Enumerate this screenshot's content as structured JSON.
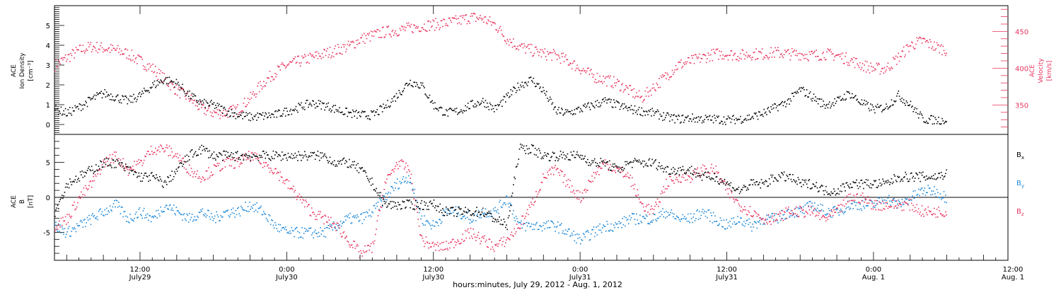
{
  "colors": {
    "axes": "#000000",
    "density": "#000000",
    "velocity": "#e8345e",
    "bx": "#000000",
    "by": "#1e88d8",
    "bz": "#e8345e"
  },
  "chart_data": [
    {
      "type": "scatter",
      "panel": "top",
      "title": "",
      "ylabel": [
        "ACE",
        "Ion Density",
        "[cm⁻³]"
      ],
      "ylim": [
        -0.5,
        6
      ],
      "yticks": [
        "0",
        "1",
        "2",
        "3",
        "4",
        "5"
      ],
      "y2label": [
        "ACE",
        "Velocity",
        "[km/s]"
      ],
      "y2lim": [
        310,
        485
      ],
      "y2ticks": [
        "350",
        "400",
        "450"
      ],
      "x_unit": "hours since July 29, 2012 00:00",
      "xlim": [
        5,
        83
      ],
      "series": [
        {
          "axis": "left",
          "x": [
            5,
            6,
            7,
            8,
            9,
            10,
            11,
            12,
            13,
            14,
            15,
            16,
            17,
            18,
            19,
            20,
            21,
            22,
            23,
            24,
            25,
            26,
            27,
            28,
            29,
            30,
            31,
            32,
            33,
            34,
            35,
            36,
            37,
            38,
            39,
            40,
            41,
            42,
            43,
            44,
            45,
            46,
            47,
            48,
            49,
            50,
            51,
            52,
            53,
            54,
            55,
            56,
            57,
            58,
            59,
            60,
            61,
            62,
            63,
            64,
            65,
            66,
            67,
            68,
            69,
            70,
            71,
            72,
            73,
            74,
            75,
            76,
            77,
            78
          ],
          "values": [
            0.8,
            0.6,
            0.9,
            1.3,
            1.6,
            1.4,
            1.2,
            1.5,
            2.0,
            2.3,
            2.1,
            1.5,
            1.1,
            1.0,
            0.7,
            0.5,
            0.4,
            0.45,
            0.5,
            0.7,
            0.9,
            1.1,
            1.0,
            0.8,
            0.6,
            0.5,
            0.5,
            0.9,
            1.5,
            2.2,
            2.0,
            1.0,
            0.6,
            0.7,
            1.0,
            1.2,
            0.8,
            1.4,
            2.0,
            2.3,
            1.7,
            0.7,
            0.6,
            0.8,
            1.0,
            1.2,
            1.0,
            0.8,
            0.7,
            0.6,
            0.4,
            0.3,
            0.35,
            0.3,
            0.3,
            0.25,
            0.3,
            0.4,
            0.6,
            0.9,
            1.2,
            1.8,
            1.4,
            1.0,
            1.2,
            1.6,
            1.1,
            0.8,
            0.9,
            1.5,
            1.0,
            0.3,
            0.25,
            0.25
          ]
        },
        {
          "axis": "right",
          "x": [
            5,
            6,
            7,
            8,
            9,
            10,
            11,
            12,
            13,
            14,
            15,
            16,
            17,
            18,
            19,
            20,
            21,
            22,
            23,
            24,
            25,
            26,
            27,
            28,
            29,
            30,
            31,
            32,
            33,
            34,
            35,
            36,
            37,
            38,
            39,
            40,
            41,
            42,
            43,
            44,
            45,
            46,
            47,
            48,
            49,
            50,
            51,
            52,
            53,
            54,
            55,
            56,
            57,
            58,
            59,
            60,
            61,
            62,
            63,
            64,
            65,
            66,
            67,
            68,
            69,
            70,
            71,
            72,
            73,
            74,
            75,
            76,
            77,
            78
          ],
          "values": [
            405,
            415,
            425,
            430,
            428,
            425,
            420,
            410,
            400,
            385,
            370,
            360,
            345,
            340,
            340,
            345,
            360,
            380,
            395,
            405,
            410,
            415,
            420,
            425,
            430,
            440,
            445,
            450,
            452,
            455,
            458,
            460,
            462,
            465,
            470,
            468,
            460,
            440,
            430,
            425,
            420,
            418,
            410,
            400,
            390,
            385,
            380,
            370,
            360,
            375,
            390,
            405,
            410,
            415,
            420,
            420,
            418,
            420,
            420,
            422,
            420,
            420,
            418,
            420,
            418,
            412,
            405,
            400,
            400,
            415,
            432,
            438,
            430,
            425
          ]
        }
      ]
    },
    {
      "type": "scatter",
      "panel": "bottom",
      "title": "",
      "ylabel": [
        "ACE",
        "B",
        "[nT]"
      ],
      "ylim": [
        -9,
        9
      ],
      "yticks": [
        "-5",
        "0",
        "5"
      ],
      "x_unit": "hours since July 29, 2012 00:00",
      "xlim": [
        5,
        83
      ],
      "xticks": [
        {
          "x": 12,
          "top": "12:00",
          "bottom": "July29"
        },
        {
          "x": 24,
          "top": "0:00",
          "bottom": "July30"
        },
        {
          "x": 36,
          "top": "12:00",
          "bottom": "July30"
        },
        {
          "x": 48,
          "top": "0:00",
          "bottom": "July31"
        },
        {
          "x": 60,
          "top": "12:00",
          "bottom": "July31"
        },
        {
          "x": 72,
          "top": "0:00",
          "bottom": "Aug. 1"
        },
        {
          "x": 84,
          "top": "12:00",
          "bottom": "Aug. 1"
        }
      ],
      "xlabel": "hours:minutes, July 29, 2012 - Aug. 1, 2012",
      "series": [
        {
          "name": "Bx",
          "x": [
            5,
            6,
            7,
            8,
            9,
            10,
            11,
            12,
            13,
            14,
            15,
            16,
            17,
            18,
            19,
            20,
            21,
            22,
            23,
            24,
            25,
            26,
            27,
            28,
            29,
            30,
            31,
            32,
            33,
            34,
            35,
            36,
            37,
            38,
            39,
            40,
            41,
            42,
            43,
            44,
            45,
            46,
            47,
            48,
            49,
            50,
            51,
            52,
            53,
            54,
            55,
            56,
            57,
            58,
            59,
            60,
            61,
            62,
            63,
            64,
            65,
            66,
            67,
            68,
            69,
            70,
            71,
            72,
            73,
            74,
            75,
            76,
            77,
            78
          ],
          "values": [
            -2,
            2,
            3,
            4,
            5,
            5,
            4,
            3,
            3,
            2,
            4,
            6,
            7,
            6,
            6,
            6,
            6,
            6,
            6,
            6,
            6,
            6,
            6,
            5,
            5,
            4,
            2,
            -1,
            -1,
            -1,
            -1,
            -1,
            -2,
            -2,
            -2,
            -2,
            -3,
            -4,
            7,
            7,
            6,
            6,
            6,
            6,
            5,
            5,
            4,
            5,
            5,
            5,
            4,
            4,
            4,
            3,
            3,
            2,
            1,
            2,
            2,
            3,
            3,
            2,
            2,
            1,
            1,
            2,
            2,
            2,
            2,
            3,
            3,
            3,
            3,
            3.5
          ]
        },
        {
          "name": "By",
          "x": [
            5,
            6,
            7,
            8,
            9,
            10,
            11,
            12,
            13,
            14,
            15,
            16,
            17,
            18,
            19,
            20,
            21,
            22,
            23,
            24,
            25,
            26,
            27,
            28,
            29,
            30,
            31,
            32,
            33,
            34,
            35,
            36,
            37,
            38,
            39,
            40,
            41,
            42,
            43,
            44,
            45,
            46,
            47,
            48,
            49,
            50,
            51,
            52,
            53,
            54,
            55,
            56,
            57,
            58,
            59,
            60,
            61,
            62,
            63,
            64,
            65,
            66,
            67,
            68,
            69,
            70,
            71,
            72,
            73,
            74,
            75,
            76,
            77,
            78
          ],
          "values": [
            -4,
            -5,
            -4,
            -3,
            -2,
            -1,
            -3,
            -2,
            -3,
            -1,
            -2,
            -3,
            -2,
            -3,
            -2,
            -2,
            -1,
            -2,
            -4,
            -5,
            -5,
            -5,
            -5,
            -4,
            -3,
            -3,
            -2,
            0,
            2,
            3,
            -3,
            -4,
            -2,
            -2,
            -3,
            -2,
            -2,
            0,
            -4,
            -4,
            -4,
            -4,
            -5,
            -6,
            -5,
            -4,
            -4,
            -3,
            -3,
            -3,
            -2,
            -3,
            -3,
            -2,
            -3,
            -4,
            -3,
            -4,
            -3,
            -3,
            -2,
            -2,
            -1,
            -2,
            -2,
            -1,
            -1,
            -1,
            0,
            -1,
            0,
            1,
            1,
            0
          ]
        },
        {
          "name": "Bz",
          "x": [
            5,
            6,
            7,
            8,
            9,
            10,
            11,
            12,
            13,
            14,
            15,
            16,
            17,
            18,
            19,
            20,
            21,
            22,
            23,
            24,
            25,
            26,
            27,
            28,
            29,
            30,
            31,
            32,
            33,
            34,
            35,
            36,
            37,
            38,
            39,
            40,
            41,
            42,
            43,
            44,
            45,
            46,
            47,
            48,
            49,
            50,
            51,
            52,
            53,
            54,
            55,
            56,
            57,
            58,
            59,
            60,
            61,
            62,
            63,
            64,
            65,
            66,
            67,
            68,
            69,
            70,
            71,
            72,
            73,
            74,
            75,
            76,
            77,
            78
          ],
          "values": [
            -4,
            -3,
            0,
            2,
            5,
            6,
            4,
            5,
            7,
            7,
            6,
            4,
            3,
            4,
            5,
            5,
            6,
            5,
            4,
            2,
            0,
            -2,
            -3,
            -4,
            -6,
            -8,
            -7,
            2,
            5,
            4,
            -6,
            -7,
            -7,
            -6,
            -5,
            -6,
            -7,
            -6,
            -4,
            -1,
            3,
            4,
            2,
            0,
            3,
            5,
            4,
            3,
            -1,
            -2,
            2,
            3,
            3,
            4,
            4,
            1,
            -1,
            -2,
            -3,
            -3,
            -2,
            -2,
            -2,
            -3,
            -2,
            0,
            0,
            -1,
            -1,
            -1,
            -1,
            -2,
            -2,
            -2
          ]
        }
      ]
    }
  ]
}
